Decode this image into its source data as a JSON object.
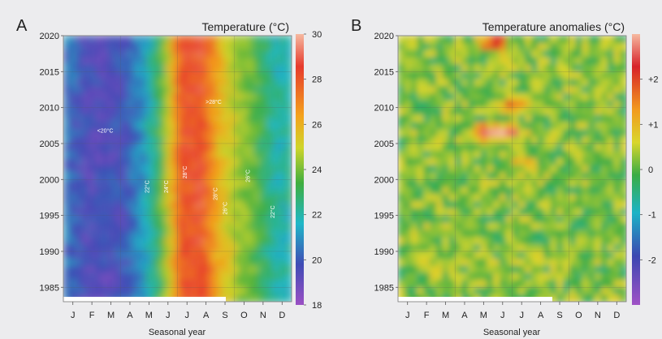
{
  "chart_data": [
    {
      "type": "heatmap",
      "panel_letter": "A",
      "title": "Temperature (°C)",
      "xlabel": "Seasonal year",
      "ylabel": "",
      "x_ticks": [
        "J",
        "F",
        "M",
        "A",
        "M",
        "J",
        "J",
        "A",
        "S",
        "O",
        "N",
        "D"
      ],
      "y_ticks": [
        "2020",
        "2015",
        "2010",
        "2005",
        "2000",
        "1995",
        "1990",
        "1985"
      ],
      "ylim": [
        1983,
        2020
      ],
      "colorbar": {
        "ticks": [
          "30",
          "28",
          "26",
          "24",
          "22",
          "20",
          "18"
        ],
        "range": [
          18,
          30
        ]
      },
      "annotations": [
        "<20°C",
        "22°C",
        "24°C",
        "28°C",
        ">28°C",
        "28°C",
        "26°C",
        "26°C",
        "22°C"
      ],
      "monthly_profile_celsius": [
        20.5,
        19.5,
        19.5,
        19.8,
        21.0,
        23.5,
        28.0,
        28.5,
        26.0,
        24.5,
        23.5,
        22.0
      ],
      "grid": true
    },
    {
      "type": "heatmap",
      "panel_letter": "B",
      "title": "Temperature anomalies (°C)",
      "xlabel": "Seasonal year",
      "ylabel": "",
      "x_ticks": [
        "J",
        "F",
        "M",
        "A",
        "M",
        "J",
        "J",
        "A",
        "S",
        "O",
        "N",
        "D"
      ],
      "y_ticks": [
        "2020",
        "2015",
        "2010",
        "2005",
        "2000",
        "1995",
        "1990",
        "1985"
      ],
      "ylim": [
        1983,
        2020
      ],
      "colorbar": {
        "ticks": [
          "+2",
          "+1",
          "0",
          "-1",
          "-2"
        ],
        "range": [
          -3,
          3
        ]
      },
      "hotspots": [
        {
          "month": 4.6,
          "year": 2006.5,
          "value": 2.8
        },
        {
          "month": 5.7,
          "year": 2006.5,
          "value": 2.2
        },
        {
          "month": 4.9,
          "year": 2019,
          "value": 2.3
        },
        {
          "month": 5.8,
          "year": 2010.5,
          "value": 1.8
        },
        {
          "month": 6.3,
          "year": 2002.5,
          "value": 1.3
        }
      ],
      "grid": true
    }
  ]
}
